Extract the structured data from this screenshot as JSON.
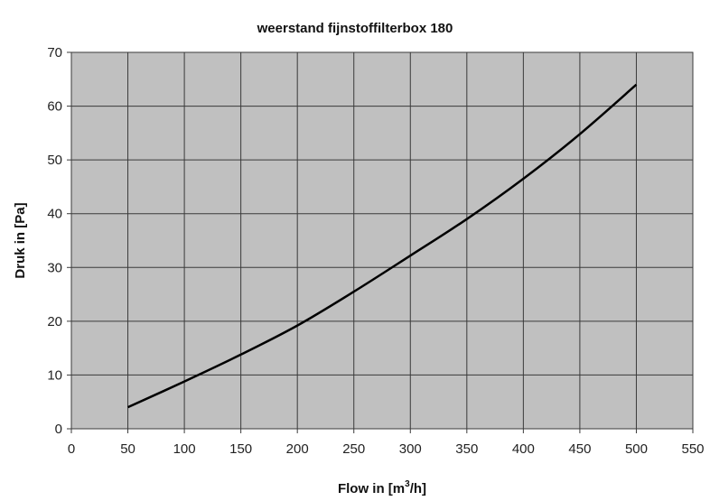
{
  "chart_data": {
    "type": "line",
    "title": "weerstand fijnstoffilterbox 180",
    "xlabel": "Flow in [m",
    "xlabel_sup": "3",
    "xlabel_tail": "/h]",
    "ylabel": "Druk in [Pa]",
    "xlim": [
      0,
      550
    ],
    "ylim": [
      0,
      70
    ],
    "x_ticks": [
      "0",
      "50",
      "100",
      "150",
      "200",
      "250",
      "300",
      "350",
      "400",
      "450",
      "500",
      "550"
    ],
    "y_ticks": [
      "0",
      "10",
      "20",
      "30",
      "40",
      "50",
      "60",
      "70"
    ],
    "grid": true,
    "legend": false,
    "colors": {
      "plot_bg": "#c0c0c0",
      "grid": "#3a3a3a",
      "line": "#000000"
    },
    "series": [
      {
        "x": [
          50,
          100,
          150,
          200,
          250,
          300,
          350,
          400,
          450,
          500
        ],
        "values": [
          4,
          8.8,
          13.8,
          19.2,
          25.5,
          32.2,
          39,
          46.5,
          54.8,
          64
        ]
      }
    ]
  }
}
